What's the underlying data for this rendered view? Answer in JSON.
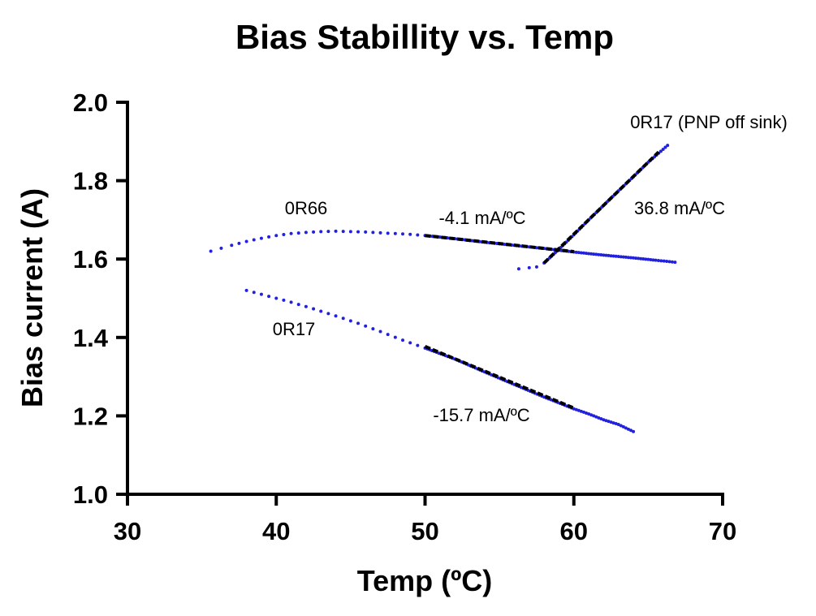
{
  "chart_data": {
    "type": "scatter",
    "title": "Bias Stabillity vs. Temp",
    "xlabel": "Temp (ºC)",
    "ylabel": "Bias current (A)",
    "xlim": [
      30,
      70
    ],
    "ylim": [
      1.0,
      2.0
    ],
    "xticks": [
      "30",
      "40",
      "50",
      "60",
      "70"
    ],
    "yticks": [
      "1.0",
      "1.2",
      "1.4",
      "1.6",
      "1.8",
      "2.0"
    ],
    "colors": {
      "points": "#2222dd",
      "fit": "#000000"
    },
    "series": [
      {
        "name": "0R66",
        "x": [
          35.6,
          37.0,
          38.0,
          39.0,
          40.0,
          41.0,
          42.0,
          43.0,
          44.0,
          45.0,
          46.0,
          47.0,
          48.0,
          49.0,
          50.0,
          52.0,
          54.0,
          56.0,
          58.0,
          60.0,
          62.0,
          64.0,
          65.5,
          66.8
        ],
        "y": [
          1.62,
          1.635,
          1.645,
          1.653,
          1.66,
          1.665,
          1.668,
          1.67,
          1.671,
          1.67,
          1.669,
          1.667,
          1.665,
          1.663,
          1.66,
          1.652,
          1.643,
          1.635,
          1.627,
          1.618,
          1.61,
          1.603,
          1.597,
          1.592
        ]
      },
      {
        "name": "0R17",
        "x": [
          38.0,
          39.5,
          41.0,
          42.5,
          44.0,
          45.5,
          47.0,
          48.5,
          50.0,
          52.0,
          54.0,
          56.0,
          58.0,
          60.0,
          61.0,
          62.0,
          63.0,
          64.0
        ],
        "y": [
          1.52,
          1.505,
          1.49,
          1.473,
          1.455,
          1.436,
          1.415,
          1.393,
          1.373,
          1.345,
          1.312,
          1.28,
          1.248,
          1.218,
          1.205,
          1.19,
          1.178,
          1.16
        ]
      },
      {
        "name": "0R17 (PNP off sink)",
        "x": [
          56.3,
          57.0,
          57.5,
          58.0,
          59.0,
          60.0,
          61.0,
          62.0,
          63.0,
          64.0,
          65.0,
          65.7,
          66.3
        ],
        "y": [
          1.575,
          1.578,
          1.58,
          1.59,
          1.625,
          1.662,
          1.7,
          1.737,
          1.774,
          1.81,
          1.847,
          1.87,
          1.89
        ]
      }
    ],
    "fit_lines": [
      {
        "label": "-4.1 mA/ºC",
        "x": [
          50.0,
          60.0
        ],
        "y": [
          1.66,
          1.619
        ]
      },
      {
        "label": "-15.7 mA/ºC",
        "x": [
          50.0,
          60.0
        ],
        "y": [
          1.377,
          1.22
        ]
      },
      {
        "label": "36.8 mA/ºC",
        "x": [
          58.0,
          65.7
        ],
        "y": [
          1.59,
          1.873
        ]
      }
    ]
  }
}
